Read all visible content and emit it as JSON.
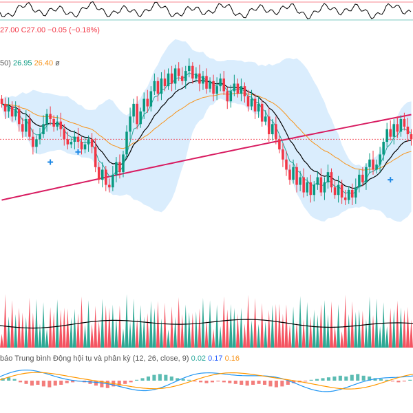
{
  "ohlc_legend": {
    "close_prefix": "27.00",
    "close_label": "C27.00",
    "change": "−0.05 (−0.18%)"
  },
  "ma_legend": {
    "prefix": "50)",
    "v1": "26.95",
    "v2": "26.40",
    "v3": "ø"
  },
  "macd_legend": {
    "title": "báo Trung bình Động hội tụ và phân kỳ (12, 26, close, 9)",
    "v1": "0.02",
    "v2": "0.17",
    "v3": "0.16"
  },
  "colors": {
    "up": "#089981",
    "down": "#f23645",
    "bb_fill": "#bbdefb",
    "ma_short": "#26a69a",
    "ma_mid": "#000000",
    "ma_long": "#f7931a",
    "ma_200": "#d81b60",
    "macd_line": "#2196f3",
    "signal_line": "#ff9800",
    "price_line": "#f23645"
  },
  "chart_data": {
    "type": "candlestick",
    "panes": [
      "oscillator",
      "price",
      "volume",
      "macd"
    ],
    "price_last": 27.0,
    "candles_close_shape": [
      28.4,
      28.1,
      28.3,
      27.9,
      28.2,
      27.6,
      27.3,
      27.8,
      27.1,
      26.7,
      27.0,
      27.2,
      27.6,
      28.0,
      27.8,
      27.5,
      27.7,
      27.4,
      27.0,
      26.8,
      26.9,
      27.1,
      26.9,
      26.6,
      26.8,
      27.0,
      26.7,
      25.9,
      25.4,
      25.8,
      25.2,
      25.1,
      25.6,
      26.1,
      25.7,
      26.4,
      27.3,
      27.9,
      28.4,
      27.6,
      28.1,
      28.6,
      28.3,
      28.9,
      29.3,
      28.8,
      29.4,
      29.1,
      29.6,
      29.2,
      29.8,
      29.5,
      29.3,
      29.7,
      29.9,
      29.4,
      29.6,
      29.2,
      29.5,
      29.0,
      29.3,
      28.8,
      29.1,
      29.4,
      28.9,
      28.5,
      28.9,
      29.2,
      28.8,
      29.1,
      28.7,
      28.3,
      28.6,
      28.1,
      28.4,
      27.7,
      27.9,
      27.2,
      27.6,
      27.0,
      26.6,
      26.2,
      25.8,
      25.4,
      25.9,
      25.2,
      25.5,
      24.9,
      25.3,
      24.8,
      25.2,
      25.5,
      24.9,
      25.3,
      25.7,
      25.1,
      24.8,
      25.2,
      24.7,
      24.6,
      25.0,
      24.7,
      25.1,
      25.6,
      25.3,
      25.9,
      26.2,
      25.8,
      26.0,
      26.4,
      26.9,
      27.4,
      27.1,
      27.6,
      27.3,
      27.8,
      27.5,
      27.2,
      27.0
    ],
    "macd_histogram_shape": [
      0.03,
      0.04,
      0.02,
      -0.02,
      -0.04,
      -0.06,
      -0.05,
      -0.07,
      -0.08,
      -0.06,
      -0.05,
      -0.03,
      -0.02,
      -0.01,
      -0.02,
      -0.04,
      -0.06,
      -0.08,
      -0.09,
      -0.07,
      -0.06,
      -0.04,
      -0.02,
      0.01,
      0.03,
      0.05,
      0.07,
      0.08,
      0.07,
      0.05,
      0.03,
      0.02,
      0.01,
      -0.01,
      -0.02,
      -0.03,
      -0.02,
      -0.01,
      -0.02,
      -0.03,
      -0.04,
      -0.05,
      -0.06,
      -0.05,
      -0.04,
      -0.05,
      -0.07,
      -0.08,
      -0.07,
      -0.05,
      -0.03,
      -0.02,
      -0.01,
      0.01,
      0.02,
      0.03,
      0.04,
      0.05,
      0.06,
      0.05,
      0.07,
      0.08,
      0.06,
      0.05,
      0.03,
      0.02,
      0.01,
      -0.01,
      -0.02,
      -0.01,
      0.01
    ]
  }
}
